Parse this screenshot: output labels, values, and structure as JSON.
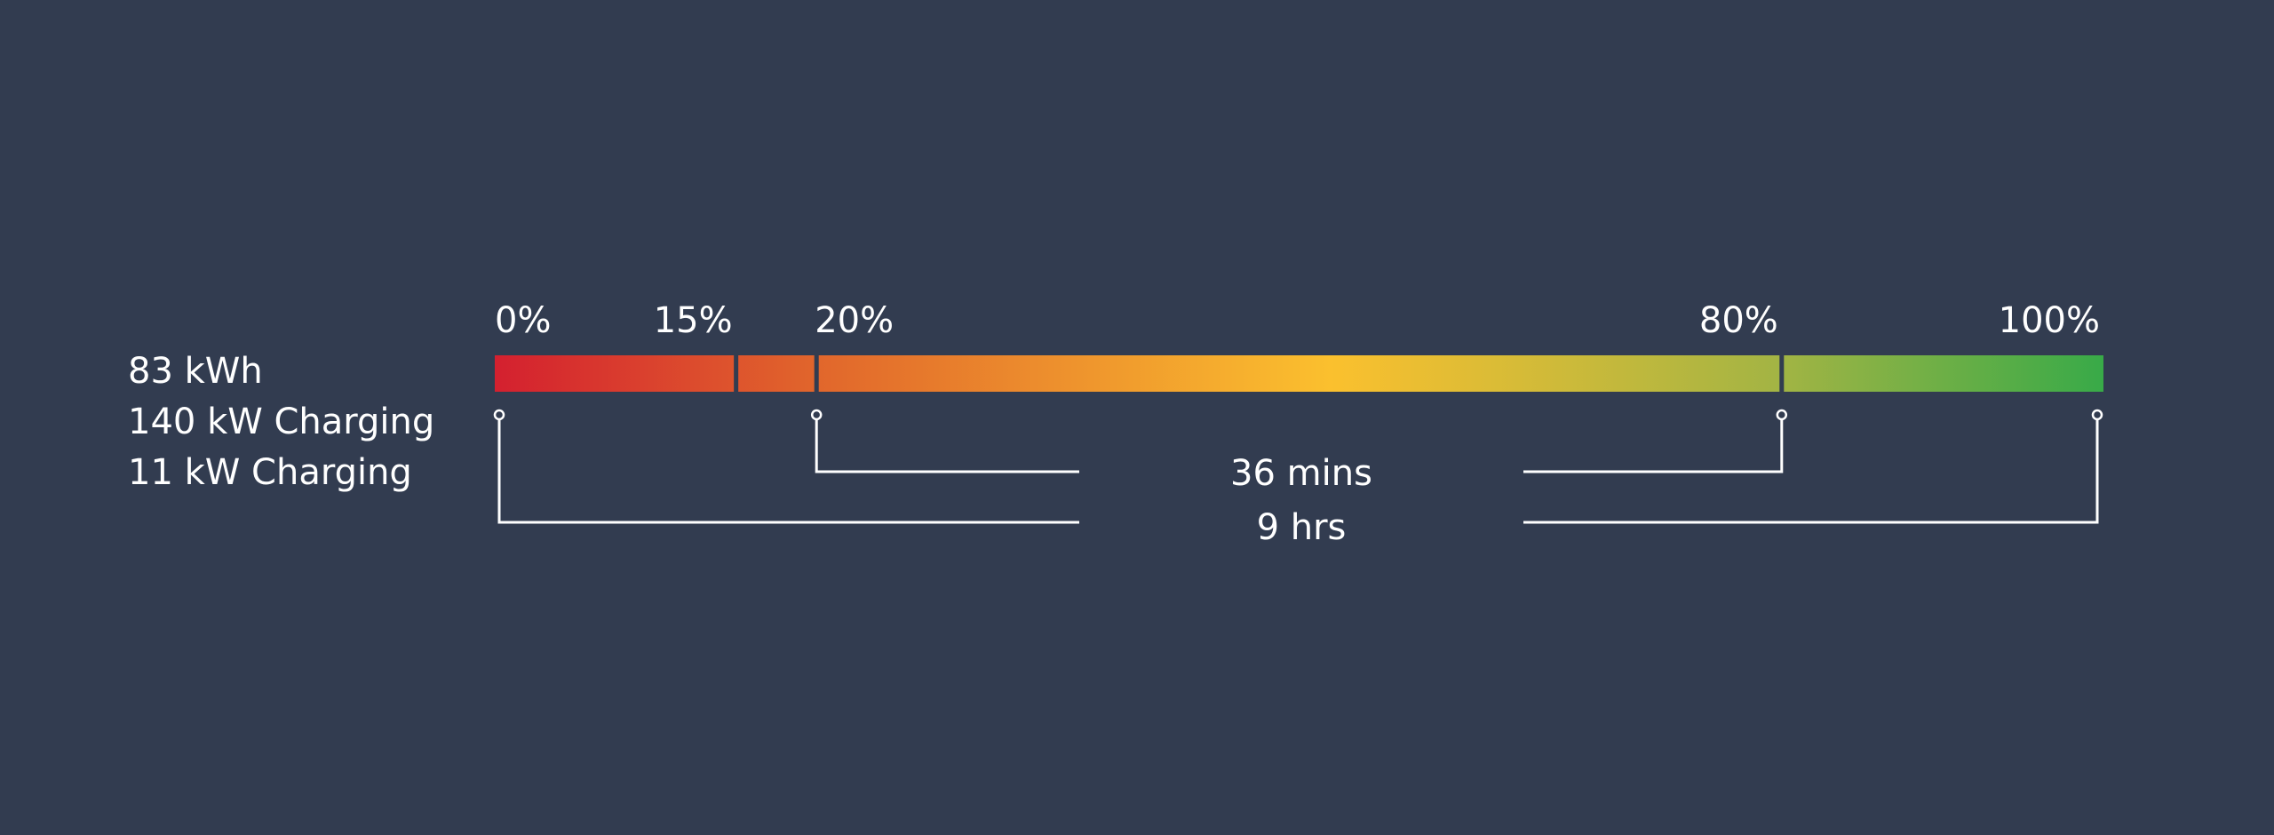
{
  "specs": [
    {
      "label": "83 kWh"
    },
    {
      "label": "140 kW Charging"
    },
    {
      "label": "11 kW Charging"
    }
  ],
  "battery_bar": {
    "dividers_percent": [
      15,
      20,
      80
    ],
    "gradient": [
      {
        "percent": 0,
        "color": "#d4202f"
      },
      {
        "percent": 20,
        "color": "#e1662c"
      },
      {
        "percent": 52,
        "color": "#fbc02e"
      },
      {
        "percent": 80,
        "color": "#a2b444"
      },
      {
        "percent": 100,
        "color": "#38aa48"
      }
    ]
  },
  "ticks": [
    {
      "percent": 0,
      "label": "0%"
    },
    {
      "percent": 15,
      "label": "15%"
    },
    {
      "percent": 20,
      "label": "20%"
    },
    {
      "percent": 80,
      "label": "80%"
    },
    {
      "percent": 100,
      "label": "100%"
    }
  ],
  "durations": [
    {
      "from_percent": 20,
      "to_percent": 80,
      "label": "36 mins"
    },
    {
      "from_percent": 0,
      "to_percent": 100,
      "label": "9 hrs"
    }
  ],
  "colors": {
    "background": "#323c50",
    "text": "#ffffff",
    "bracket": "#ffffff"
  }
}
